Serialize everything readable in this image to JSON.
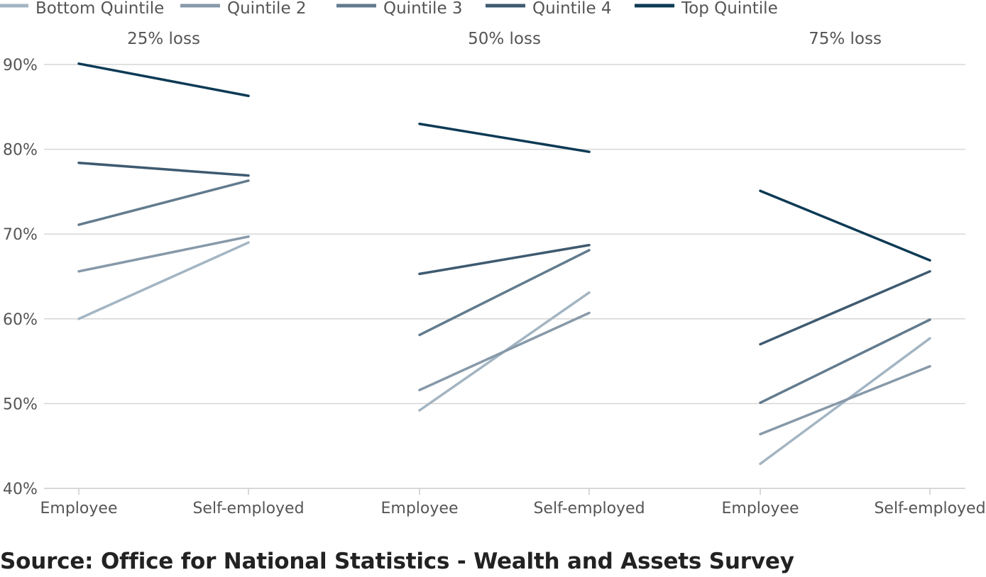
{
  "chart_data": {
    "type": "line",
    "panels": [
      {
        "title": "25% loss",
        "categories": [
          "Employee",
          "Self-employed"
        ],
        "series": [
          {
            "name": "Bottom Quintile",
            "values": [
              60.0,
              69.0
            ]
          },
          {
            "name": "Quintile 2",
            "values": [
              65.6,
              69.7
            ]
          },
          {
            "name": "Quintile 3",
            "values": [
              71.1,
              76.3
            ]
          },
          {
            "name": "Quintile 4",
            "values": [
              78.4,
              76.9
            ]
          },
          {
            "name": "Top Quintile",
            "values": [
              90.1,
              86.3
            ]
          }
        ]
      },
      {
        "title": "50% loss",
        "categories": [
          "Employee",
          "Self-employed"
        ],
        "series": [
          {
            "name": "Bottom Quintile",
            "values": [
              49.2,
              63.1
            ]
          },
          {
            "name": "Quintile 2",
            "values": [
              51.6,
              60.7
            ]
          },
          {
            "name": "Quintile 3",
            "values": [
              58.1,
              68.1
            ]
          },
          {
            "name": "Quintile 4",
            "values": [
              65.3,
              68.7
            ]
          },
          {
            "name": "Top Quintile",
            "values": [
              83.0,
              79.7
            ]
          }
        ]
      },
      {
        "title": "75% loss",
        "categories": [
          "Employee",
          "Self-employed"
        ],
        "series": [
          {
            "name": "Bottom Quintile",
            "values": [
              42.9,
              57.7
            ]
          },
          {
            "name": "Quintile 2",
            "values": [
              46.4,
              54.4
            ]
          },
          {
            "name": "Quintile 3",
            "values": [
              50.1,
              59.9
            ]
          },
          {
            "name": "Quintile 4",
            "values": [
              57.0,
              65.6
            ]
          },
          {
            "name": "Top Quintile",
            "values": [
              75.1,
              66.9
            ]
          }
        ]
      }
    ],
    "legend": {
      "placement": "top-left",
      "entries": [
        "Bottom Quintile",
        "Quintile 2",
        "Quintile 3",
        "Quintile 4",
        "Top Quintile"
      ]
    },
    "y_ticks": [
      "40%",
      "50%",
      "60%",
      "70%",
      "80%",
      "90%"
    ],
    "y_tick_values": [
      40,
      50,
      60,
      70,
      80,
      90
    ],
    "ylim": [
      40,
      90
    ],
    "grid": true,
    "colors": {
      "Bottom Quintile": "#a3b5c3",
      "Quintile 2": "#8799a9",
      "Quintile 3": "#627b8e",
      "Quintile 4": "#3e5a70",
      "Top Quintile": "#0d3a55",
      "grid": "#d6d6d6",
      "axis": "#cccccc"
    }
  },
  "source": "Source: Office for National Statistics - Wealth and Assets Survey"
}
